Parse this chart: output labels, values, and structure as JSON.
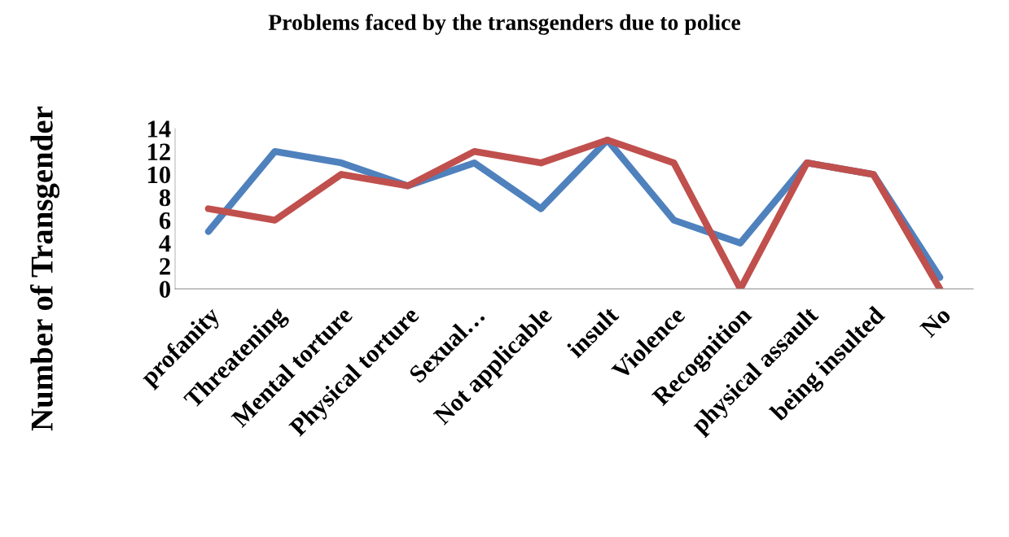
{
  "chart_data": {
    "type": "line",
    "title": "Problems faced by the transgenders due to police",
    "ylabel": "Number of Transgender",
    "categories": [
      "profanity",
      "Threatening",
      "Mental torture",
      "Physical torture",
      "Sexual…",
      "Not applicable",
      "insult",
      "Violence",
      "Recognition",
      "physical assault",
      "being insulted",
      "No"
    ],
    "series": [
      {
        "color": "#4f81bd",
        "values": [
          5,
          12,
          11,
          9,
          11,
          7,
          13,
          6,
          4,
          11,
          10,
          1
        ]
      },
      {
        "color": "#c0504d",
        "values": [
          7,
          6,
          10,
          9,
          12,
          11,
          13,
          11,
          0,
          11,
          10,
          0
        ]
      }
    ],
    "ylim": [
      0,
      14
    ],
    "yticks": [
      0,
      2,
      4,
      6,
      8,
      10,
      12,
      14
    ],
    "grid": false,
    "legend": false,
    "marker": "none",
    "line_style": "solid"
  }
}
